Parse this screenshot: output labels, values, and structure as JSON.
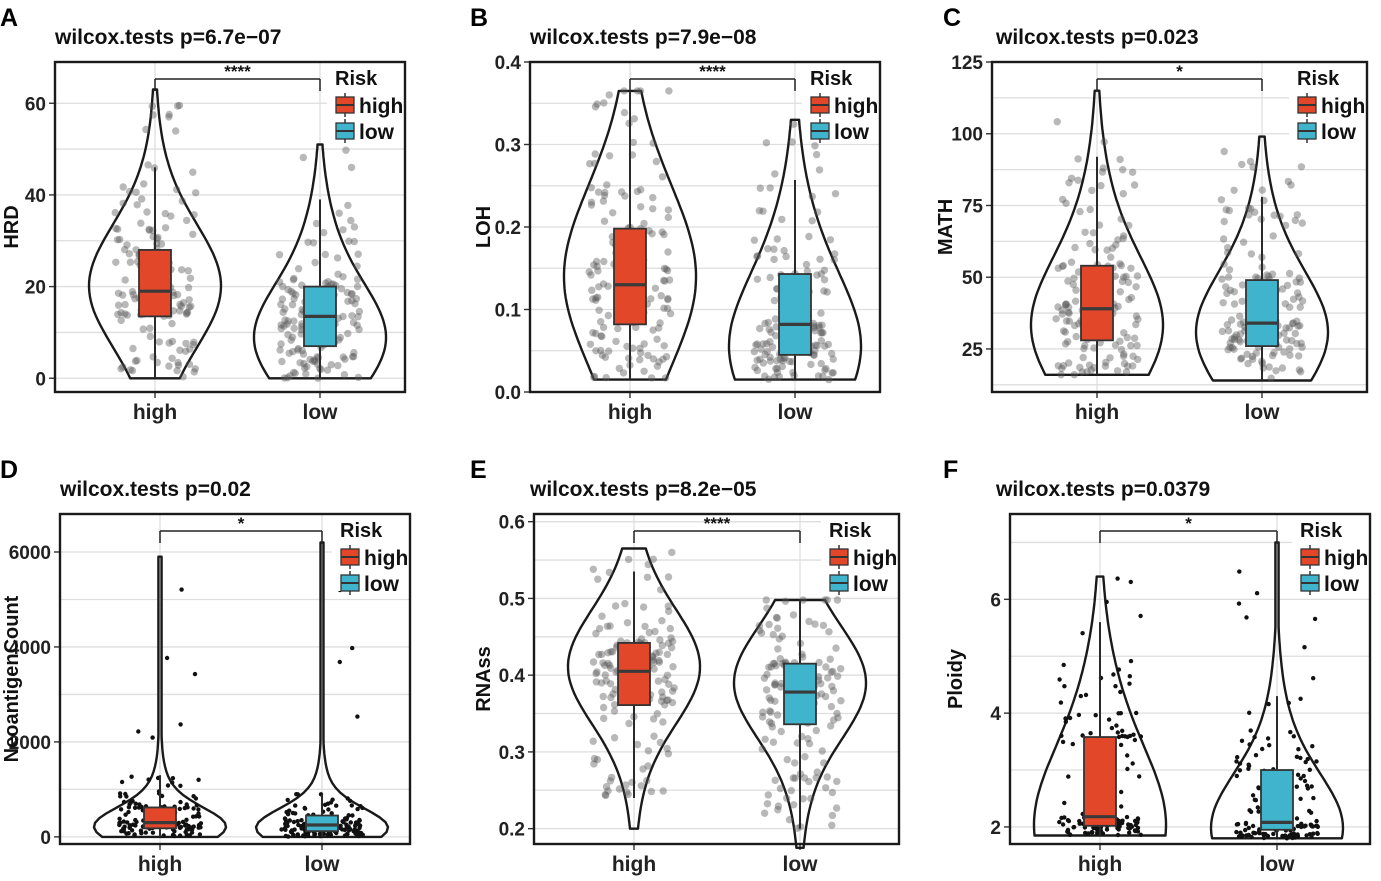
{
  "colors": {
    "high": "#e2472a",
    "low": "#3fb4cc",
    "grid": "#dedede",
    "point": "#555555"
  },
  "legend": {
    "title": "Risk",
    "items": [
      "high",
      "low"
    ]
  },
  "chart_data": [
    {
      "id": "A",
      "type": "violin-box",
      "title": "wilcox.tests p=6.7e−07",
      "ylabel": "HRD",
      "categories": [
        "high",
        "low"
      ],
      "ylim": [
        -3,
        69
      ],
      "yticks": [
        0,
        20,
        40,
        60
      ],
      "yticklabels": [
        "0",
        "20",
        "40",
        "60"
      ],
      "significance": "****",
      "point_style": "grey",
      "groups": [
        {
          "name": "high",
          "min": 0,
          "q1": 13.5,
          "median": 19,
          "q3": 28,
          "max": 63,
          "whisker_low": 0,
          "whisker_high": 46,
          "mode": 20
        },
        {
          "name": "low",
          "min": 0,
          "q1": 7,
          "median": 13.5,
          "q3": 20,
          "max": 51,
          "whisker_low": 0,
          "whisker_high": 39,
          "mode": 8
        }
      ]
    },
    {
      "id": "B",
      "type": "violin-box",
      "title": "wilcox.tests p=7.9e−08",
      "ylabel": "LOH",
      "categories": [
        "high",
        "low"
      ],
      "ylim": [
        0,
        0.4
      ],
      "yticks": [
        0,
        0.1,
        0.2,
        0.3,
        0.4
      ],
      "yticklabels": [
        "0.0",
        "0.1",
        "0.2",
        "0.3",
        "0.4"
      ],
      "significance": "****",
      "point_style": "grey",
      "groups": [
        {
          "name": "high",
          "min": 0.015,
          "q1": 0.082,
          "median": 0.13,
          "q3": 0.198,
          "max": 0.365,
          "whisker_low": 0.015,
          "whisker_high": 0.365,
          "mode": 0.14
        },
        {
          "name": "low",
          "min": 0.015,
          "q1": 0.045,
          "median": 0.082,
          "q3": 0.143,
          "max": 0.33,
          "whisker_low": 0.015,
          "whisker_high": 0.257,
          "mode": 0.05
        }
      ]
    },
    {
      "id": "C",
      "type": "violin-box",
      "title": "wilcox.tests p=0.023",
      "ylabel": "MATH",
      "categories": [
        "high",
        "low"
      ],
      "ylim": [
        10,
        125
      ],
      "yticks": [
        25,
        50,
        75,
        100,
        125
      ],
      "yticklabels": [
        "25",
        "50",
        "75",
        "100",
        "125"
      ],
      "significance": "*",
      "point_style": "grey",
      "groups": [
        {
          "name": "high",
          "min": 16,
          "q1": 28,
          "median": 39,
          "q3": 54,
          "max": 115,
          "whisker_low": 16,
          "whisker_high": 92,
          "mode": 32
        },
        {
          "name": "low",
          "min": 14,
          "q1": 26,
          "median": 34,
          "q3": 49,
          "max": 99,
          "whisker_low": 14,
          "whisker_high": 78,
          "mode": 30
        }
      ]
    },
    {
      "id": "D",
      "type": "violin-box",
      "title": "wilcox.tests p=0.02",
      "ylabel": "NeoantigenCount",
      "categories": [
        "high",
        "low"
      ],
      "ylim": [
        -150,
        6800
      ],
      "yticks": [
        0,
        2000,
        4000,
        6000
      ],
      "yticklabels": [
        "0",
        "2000",
        "4000",
        "6000"
      ],
      "significance": "*",
      "point_style": "black",
      "groups": [
        {
          "name": "high",
          "min": 0,
          "q1": 180,
          "median": 300,
          "q3": 620,
          "max": 5900,
          "whisker_low": 0,
          "whisker_high": 1300,
          "mode": 200
        },
        {
          "name": "low",
          "min": 0,
          "q1": 120,
          "median": 250,
          "q3": 450,
          "max": 6200,
          "whisker_low": 0,
          "whisker_high": 900,
          "mode": 180
        }
      ]
    },
    {
      "id": "E",
      "type": "violin-box",
      "title": "wilcox.tests p=8.2e−05",
      "ylabel": "RNAss",
      "categories": [
        "high",
        "low"
      ],
      "ylim": [
        0.18,
        0.61
      ],
      "yticks": [
        0.2,
        0.3,
        0.4,
        0.5,
        0.6
      ],
      "yticklabels": [
        "0.2",
        "0.3",
        "0.4",
        "0.5",
        "0.6"
      ],
      "significance": "****",
      "point_style": "grey",
      "groups": [
        {
          "name": "high",
          "min": 0.2,
          "q1": 0.361,
          "median": 0.405,
          "q3": 0.442,
          "max": 0.565,
          "whisker_low": 0.24,
          "whisker_high": 0.535,
          "mode": 0.41
        },
        {
          "name": "low",
          "min": 0.175,
          "q1": 0.336,
          "median": 0.378,
          "q3": 0.415,
          "max": 0.498,
          "whisker_low": 0.2,
          "whisker_high": 0.498,
          "mode": 0.39
        }
      ]
    },
    {
      "id": "F",
      "type": "violin-box",
      "title": "wilcox.tests p=0.0379",
      "ylabel": "Ploidy",
      "categories": [
        "high",
        "low"
      ],
      "ylim": [
        1.7,
        7.5
      ],
      "yticks": [
        2,
        4,
        6
      ],
      "yticklabels": [
        "2",
        "4",
        "6"
      ],
      "significance": "*",
      "point_style": "black",
      "groups": [
        {
          "name": "high",
          "min": 1.85,
          "q1": 2.02,
          "median": 2.18,
          "q3": 3.58,
          "max": 6.4,
          "whisker_low": 1.85,
          "whisker_high": 5.6,
          "mode": 2.0
        },
        {
          "name": "low",
          "min": 1.8,
          "q1": 1.95,
          "median": 2.08,
          "q3": 3.0,
          "max": 7.0,
          "whisker_low": 1.8,
          "whisker_high": 4.3,
          "mode": 1.95
        }
      ]
    }
  ]
}
